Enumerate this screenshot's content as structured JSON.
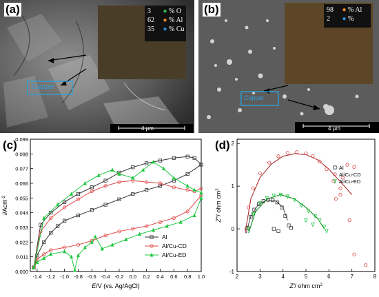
{
  "panel_a": {
    "label": "(a)",
    "legend": [
      {
        "value": "3",
        "element": "% O",
        "color": "#2fbf4f"
      },
      {
        "value": "62",
        "element": "% Al",
        "color": "#f08a2a"
      },
      {
        "value": "35",
        "element": "% Cu",
        "color": "#2f8fd8"
      }
    ],
    "annotation": "Copper",
    "scale_bar": "4 μm"
  },
  "panel_b": {
    "label": "(b)",
    "legend": [
      {
        "value": "98",
        "element": "% Al",
        "color": "#f08a2a"
      },
      {
        "value": "2",
        "element": "%",
        "color": "#2f8fd8"
      }
    ],
    "annotation": "Copper",
    "scale_bar": "4 μm"
  },
  "panel_c": {
    "label": "(c)",
    "chart_data": {
      "type": "line",
      "xlabel_parts": [
        "E",
        "/V (vs. Ag/AgCl)"
      ],
      "ylabel_parts": [
        "i",
        "/Acm",
        "-2"
      ],
      "xlim": [
        -1.5,
        1.0
      ],
      "ylim": [
        0.0,
        0.099
      ],
      "xticks": [
        "-1.4",
        "-1.2",
        "-1.0",
        "-0.8",
        "-0.6",
        "-0.4",
        "-0.2",
        "0.0",
        "0.2",
        "0.4",
        "0.6",
        "0.8",
        "1.0"
      ],
      "yticks": [
        "0.000",
        "0.011",
        "0.022",
        "0.033",
        "0.044",
        "0.055",
        "0.066",
        "0.077",
        "0.088",
        "0.099"
      ],
      "legend_position": "bottom-right",
      "series": [
        {
          "name": "Al",
          "color": "#333333",
          "marker": "square",
          "forward": [
            [
              -1.45,
              0.003
            ],
            [
              -1.4,
              0.012
            ],
            [
              -1.3,
              0.022
            ],
            [
              -1.2,
              0.029
            ],
            [
              -1.1,
              0.034
            ],
            [
              -1.0,
              0.038
            ],
            [
              -0.8,
              0.042
            ],
            [
              -0.6,
              0.046
            ],
            [
              -0.4,
              0.05
            ],
            [
              -0.2,
              0.054
            ],
            [
              0.0,
              0.058
            ],
            [
              0.2,
              0.061
            ],
            [
              0.4,
              0.064
            ],
            [
              0.6,
              0.068
            ],
            [
              0.8,
              0.073
            ],
            [
              1.0,
              0.08
            ]
          ],
          "reverse": [
            [
              1.0,
              0.08
            ],
            [
              0.9,
              0.085
            ],
            [
              0.8,
              0.086
            ],
            [
              0.6,
              0.085
            ],
            [
              0.4,
              0.083
            ],
            [
              0.2,
              0.081
            ],
            [
              0.0,
              0.078
            ],
            [
              -0.2,
              0.074
            ],
            [
              -0.4,
              0.068
            ],
            [
              -0.6,
              0.063
            ],
            [
              -0.8,
              0.058
            ],
            [
              -1.0,
              0.052
            ],
            [
              -1.2,
              0.044
            ],
            [
              -1.35,
              0.035
            ],
            [
              -1.45,
              0.003
            ]
          ]
        },
        {
          "name": "Al/Cu-CD",
          "color": "#e04848",
          "marker": "circle",
          "forward": [
            [
              -1.45,
              0.003
            ],
            [
              -1.4,
              0.009
            ],
            [
              -1.3,
              0.013
            ],
            [
              -1.2,
              0.016
            ],
            [
              -1.0,
              0.018
            ],
            [
              -0.8,
              0.02
            ],
            [
              -0.6,
              0.023
            ],
            [
              -0.4,
              0.027
            ],
            [
              -0.2,
              0.03
            ],
            [
              0.0,
              0.032
            ],
            [
              0.2,
              0.034
            ],
            [
              0.4,
              0.037
            ],
            [
              0.6,
              0.04
            ],
            [
              0.8,
              0.045
            ],
            [
              1.0,
              0.057
            ]
          ],
          "reverse": [
            [
              1.0,
              0.062
            ],
            [
              0.9,
              0.06
            ],
            [
              0.8,
              0.061
            ],
            [
              0.6,
              0.063
            ],
            [
              0.4,
              0.066
            ],
            [
              0.2,
              0.067
            ],
            [
              0.0,
              0.068
            ],
            [
              -0.2,
              0.067
            ],
            [
              -0.4,
              0.064
            ],
            [
              -0.6,
              0.06
            ],
            [
              -0.8,
              0.054
            ],
            [
              -1.0,
              0.048
            ],
            [
              -1.2,
              0.04
            ],
            [
              -1.35,
              0.03
            ],
            [
              -1.45,
              0.003
            ]
          ]
        },
        {
          "name": "Al/Cu-ED",
          "color": "#20c840",
          "marker": "triangle",
          "forward": [
            [
              -1.45,
              0.003
            ],
            [
              -1.4,
              0.007
            ],
            [
              -1.3,
              0.01
            ],
            [
              -1.2,
              0.013
            ],
            [
              -1.0,
              0.015
            ],
            [
              -0.9,
              0.011
            ],
            [
              -0.85,
              0.001
            ],
            [
              -0.8,
              0.012
            ],
            [
              -0.7,
              0.018
            ],
            [
              -0.6,
              0.022
            ],
            [
              -0.55,
              0.026
            ],
            [
              -0.45,
              0.017
            ],
            [
              -0.3,
              0.02
            ],
            [
              -0.1,
              0.024
            ],
            [
              0.1,
              0.028
            ],
            [
              0.3,
              0.031
            ],
            [
              0.5,
              0.034
            ],
            [
              0.7,
              0.037
            ],
            [
              0.9,
              0.042
            ],
            [
              1.0,
              0.055
            ]
          ],
          "reverse": [
            [
              1.0,
              0.059
            ],
            [
              0.9,
              0.061
            ],
            [
              0.8,
              0.064
            ],
            [
              0.6,
              0.07
            ],
            [
              0.45,
              0.077
            ],
            [
              0.3,
              0.082
            ],
            [
              0.15,
              0.076
            ],
            [
              0.0,
              0.07
            ],
            [
              -0.2,
              0.073
            ],
            [
              -0.3,
              0.076
            ],
            [
              -0.5,
              0.072
            ],
            [
              -0.7,
              0.066
            ],
            [
              -0.9,
              0.058
            ],
            [
              -1.1,
              0.05
            ],
            [
              -1.3,
              0.04
            ],
            [
              -1.45,
              0.003
            ]
          ]
        }
      ]
    }
  },
  "panel_d": {
    "label": "(d)",
    "chart_data": {
      "type": "scatter",
      "xlabel_parts": [
        "Z'",
        "/ ohm cm",
        "2"
      ],
      "ylabel_parts": [
        "Z''",
        "/ ohm cm",
        "2"
      ],
      "xlim": [
        2,
        8
      ],
      "ylim": [
        -1,
        2.1
      ],
      "xticks": [
        "2",
        "3",
        "4",
        "5",
        "6",
        "7",
        "8"
      ],
      "yticks": [
        "-1",
        "0",
        "1",
        "2"
      ],
      "legend_position": "top-right",
      "series": [
        {
          "name": "Al",
          "color": "#333333",
          "marker": "square",
          "points": [
            [
              2.45,
              0.02
            ],
            [
              2.6,
              0.28
            ],
            [
              2.75,
              0.45
            ],
            [
              2.95,
              0.58
            ],
            [
              3.15,
              0.65
            ],
            [
              3.35,
              0.68
            ],
            [
              3.55,
              0.67
            ],
            [
              3.75,
              0.62
            ],
            [
              3.95,
              0.5
            ],
            [
              4.1,
              0.3
            ],
            [
              4.25,
              0.08
            ],
            [
              4.35,
              0.02
            ],
            [
              3.6,
              0.0
            ],
            [
              3.8,
              -0.05
            ]
          ]
        },
        {
          "name": "Al/Cu-CD",
          "color": "#e04848",
          "marker": "circle",
          "points": [
            [
              2.4,
              0.0
            ],
            [
              2.5,
              0.5
            ],
            [
              2.7,
              0.95
            ],
            [
              3.0,
              1.3
            ],
            [
              3.4,
              1.55
            ],
            [
              3.8,
              1.7
            ],
            [
              4.2,
              1.78
            ],
            [
              4.6,
              1.8
            ],
            [
              5.0,
              1.77
            ],
            [
              5.3,
              1.7
            ],
            [
              5.6,
              1.58
            ],
            [
              5.9,
              1.4
            ],
            [
              6.2,
              1.12
            ],
            [
              6.5,
              0.8
            ],
            [
              6.6,
              1.2
            ],
            [
              6.8,
              1.5
            ],
            [
              7.1,
              1.45
            ],
            [
              6.9,
              0.2
            ],
            [
              7.1,
              -0.6
            ],
            [
              7.6,
              -0.85
            ],
            [
              6.5,
              0.95
            ],
            [
              6.3,
              0.7
            ]
          ]
        },
        {
          "name": "Al/Cu-ED",
          "color": "#20c840",
          "marker": "triangle-down",
          "points": [
            [
              2.5,
              0.0
            ],
            [
              2.7,
              0.35
            ],
            [
              3.0,
              0.6
            ],
            [
              3.3,
              0.72
            ],
            [
              3.6,
              0.78
            ],
            [
              3.9,
              0.8
            ],
            [
              4.2,
              0.76
            ],
            [
              4.5,
              0.68
            ],
            [
              4.8,
              0.55
            ],
            [
              5.1,
              0.42
            ],
            [
              5.4,
              0.3
            ],
            [
              5.6,
              0.2
            ],
            [
              5.8,
              0.05
            ],
            [
              5.3,
              0.1
            ],
            [
              5.0,
              0.2
            ],
            [
              5.9,
              -0.05
            ]
          ]
        }
      ],
      "fits": [
        {
          "series": "Al/Cu-CD",
          "color": "#a83030",
          "points": [
            [
              2.35,
              -0.1
            ],
            [
              2.6,
              0.7
            ],
            [
              3.0,
              1.2
            ],
            [
              3.5,
              1.52
            ],
            [
              4.0,
              1.7
            ],
            [
              4.5,
              1.76
            ],
            [
              5.0,
              1.74
            ],
            [
              5.5,
              1.62
            ],
            [
              6.0,
              1.4
            ],
            [
              6.5,
              1.1
            ],
            [
              7.0,
              0.8
            ]
          ]
        },
        {
          "series": "Al",
          "color": "#555555",
          "points": [
            [
              2.4,
              -0.1
            ],
            [
              2.6,
              0.3
            ],
            [
              2.9,
              0.55
            ],
            [
              3.3,
              0.68
            ],
            [
              3.7,
              0.65
            ],
            [
              4.0,
              0.5
            ],
            [
              4.2,
              0.2
            ]
          ]
        },
        {
          "series": "Al/Cu-ED",
          "color": "#0a8a20",
          "points": [
            [
              2.5,
              -0.1
            ],
            [
              2.8,
              0.4
            ],
            [
              3.3,
              0.7
            ],
            [
              3.9,
              0.8
            ],
            [
              4.5,
              0.7
            ],
            [
              5.0,
              0.5
            ],
            [
              5.5,
              0.25
            ],
            [
              5.8,
              0.0
            ]
          ]
        }
      ]
    }
  }
}
